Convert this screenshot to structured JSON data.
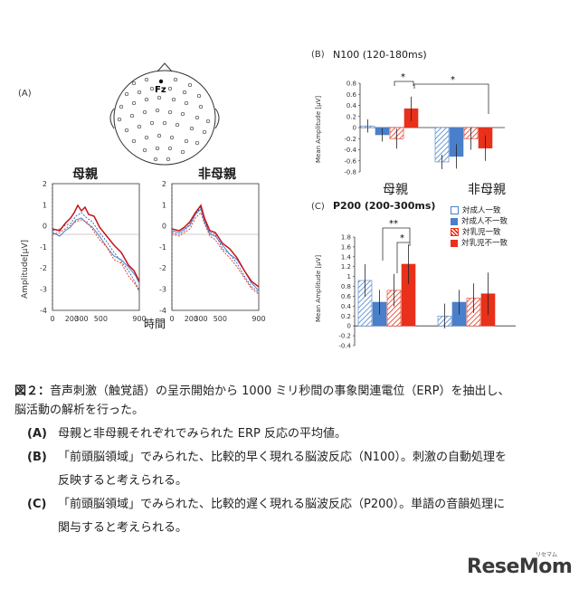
{
  "panelA": {
    "label": "(A)",
    "electrode": "Fz",
    "mother_title": "母親",
    "nonmother_title": "非母親",
    "ylabel": "Amplitude[μV]",
    "xlabel": "時間",
    "yticks": [
      "2",
      "1",
      "0",
      "-1",
      "-2",
      "-3",
      "-4"
    ],
    "xticks": [
      "0",
      "200",
      "300",
      "500",
      "900"
    ]
  },
  "panelB": {
    "label": "(B)",
    "title": "N100 (120-180ms)",
    "ylabel": "Mean Amplitude [μV]",
    "group_labels": [
      "母親",
      "非母親"
    ],
    "star1": "*",
    "star2": "*"
  },
  "panelC": {
    "label": "(C)",
    "title": "P200 (200-300ms)",
    "ylabel": "Mean Amplitude [μV]",
    "star1": "**",
    "star2": "*"
  },
  "legend": [
    "対成人一致",
    "対成人不一致",
    "対乳児一致",
    "対乳児不一致"
  ],
  "colors": {
    "blue": "#4a7fc9",
    "red": "#e8301a",
    "grid": "#888888"
  },
  "chart_data": [
    {
      "type": "bar",
      "title": "N100 (120-180ms)",
      "ylabel": "Mean Amplitude [μV]",
      "ylim": [
        -0.8,
        0.8
      ],
      "yticks": [
        0.8,
        0.6,
        0.4,
        0.2,
        0,
        -0.2,
        -0.4,
        -0.6,
        -0.8
      ],
      "categories": [
        "母親",
        "非母親"
      ],
      "series": [
        {
          "name": "対成人一致",
          "values": [
            0.03,
            -0.62
          ],
          "errors": [
            0.12,
            0.13
          ]
        },
        {
          "name": "対成人不一致",
          "values": [
            -0.13,
            -0.52
          ],
          "errors": [
            0.12,
            0.22
          ]
        },
        {
          "name": "対乳児一致",
          "values": [
            -0.2,
            -0.2
          ],
          "errors": [
            0.18,
            0.2
          ]
        },
        {
          "name": "対乳児不一致",
          "values": [
            0.34,
            -0.37
          ],
          "errors": [
            0.22,
            0.23
          ]
        }
      ]
    },
    {
      "type": "bar",
      "title": "P200 (200-300ms)",
      "ylabel": "Mean Amplitude [μV]",
      "ylim": [
        -0.4,
        1.8
      ],
      "yticks": [
        1.8,
        1.6,
        1.4,
        1.2,
        1,
        0.8,
        0.6,
        0.4,
        0.2,
        0,
        -0.2,
        -0.4
      ],
      "categories": [
        "母親",
        "非母親"
      ],
      "series": [
        {
          "name": "対成人一致",
          "values": [
            0.92,
            0.2
          ],
          "errors": [
            0.33,
            0.25
          ]
        },
        {
          "name": "対成人不一致",
          "values": [
            0.48,
            0.48
          ],
          "errors": [
            0.25,
            0.25
          ]
        },
        {
          "name": "対乳児一致",
          "values": [
            0.72,
            0.56
          ],
          "errors": [
            0.33,
            0.3
          ]
        },
        {
          "name": "対乳児不一致",
          "values": [
            1.25,
            0.65
          ],
          "errors": [
            0.4,
            0.43
          ]
        }
      ]
    }
  ],
  "caption": {
    "fig": "図２：",
    "line1": "音声刺激（触覚語）の呈示開始から 1000 ミリ秒間の事象関連電位（ERP）を抽出し、",
    "line2": "脳活動の解析を行った。",
    "a_tag": "(A)",
    "a_text": "母親と非母親それぞれでみられた ERP 反応の平均値。",
    "b_tag": "(B)",
    "b_text1": "「前頭脳領域」でみられた、比較的早く現れる脳波反応（N100）。刺激の自動処理を",
    "b_text2": "反映すると考えられる。",
    "c_tag": "(C)",
    "c_text1": "「前頭脳領域」でみられた、比較的遅く現れる脳波反応（P200）。単語の音韻処理に",
    "c_text2": "関与すると考えられる。"
  },
  "brand": {
    "name": "ReseMom",
    "ruby": "リセマム"
  }
}
